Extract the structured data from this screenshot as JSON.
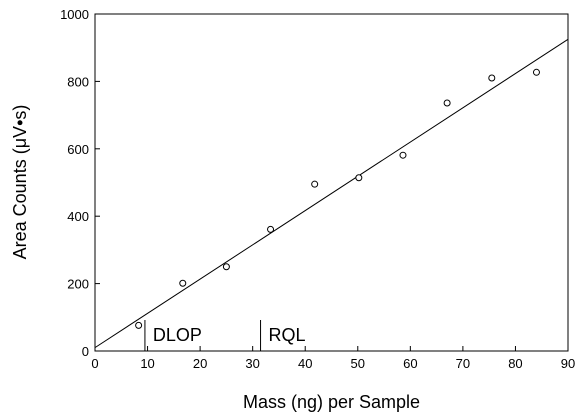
{
  "chart_data": {
    "type": "scatter",
    "xlabel": "Mass (ng) per Sample",
    "ylabel": "Area Counts (μV•s)",
    "xlim": [
      0,
      90
    ],
    "ylim": [
      0,
      1000
    ],
    "xticks": [
      0,
      10,
      20,
      30,
      40,
      50,
      60,
      70,
      80,
      90
    ],
    "yticks": [
      0,
      200,
      400,
      600,
      800,
      1000
    ],
    "grid": false,
    "points": [
      {
        "x": 8.3,
        "y": 76
      },
      {
        "x": 16.7,
        "y": 201
      },
      {
        "x": 25.0,
        "y": 250
      },
      {
        "x": 33.4,
        "y": 361
      },
      {
        "x": 41.8,
        "y": 495
      },
      {
        "x": 50.2,
        "y": 514
      },
      {
        "x": 58.6,
        "y": 581
      },
      {
        "x": 67.0,
        "y": 736
      },
      {
        "x": 75.5,
        "y": 810
      },
      {
        "x": 84.0,
        "y": 827
      }
    ],
    "fit_line": {
      "x": [
        0,
        90
      ],
      "y": [
        10,
        925
      ]
    },
    "markers": [
      {
        "label": "DLOP",
        "x": 9.5
      },
      {
        "label": "RQL",
        "x": 31.5
      }
    ]
  }
}
